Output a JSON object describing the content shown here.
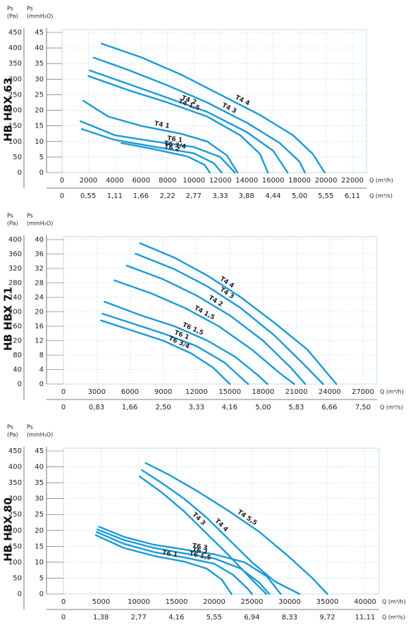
{
  "chart_data": [
    {
      "type": "line",
      "title": "HB HBX 63",
      "color": "#1b9ad6",
      "grid": true,
      "y_label": [
        "Ps",
        "(Pa)"
      ],
      "y2_label": [
        "Ps",
        "(mmH₂O)"
      ],
      "x_label": "Q (m³/h)",
      "x2_label": "Q (m³/s)",
      "ylim": [
        0,
        450
      ],
      "yticks": [
        0,
        50,
        100,
        150,
        200,
        250,
        300,
        350,
        400,
        450
      ],
      "y2lim": [
        0,
        45
      ],
      "y2ticks": [
        0,
        5,
        10,
        15,
        20,
        25,
        30,
        35,
        40,
        45
      ],
      "xlim": [
        0,
        22000
      ],
      "xticks": [
        0,
        2000,
        4000,
        6000,
        8000,
        10000,
        12000,
        14000,
        16000,
        18000,
        20000,
        22000
      ],
      "x2lim": [
        0,
        6.11
      ],
      "x2ticks": [
        0,
        {
          "value": 0.55,
          "label": "0,55"
        },
        {
          "value": 1.11,
          "label": "1,11"
        },
        {
          "value": 1.66,
          "label": "1,66"
        },
        {
          "value": 2.22,
          "label": "2,22"
        },
        {
          "value": 2.77,
          "label": "2,77"
        },
        {
          "value": 3.33,
          "label": "3,33"
        },
        {
          "value": 3.88,
          "label": "3,88"
        },
        {
          "value": 4.44,
          "label": "4,44"
        },
        {
          "value": 5.0,
          "label": "5,00"
        },
        {
          "value": 5.55,
          "label": "5,55"
        },
        {
          "value": 6.11,
          "label": "6,11"
        }
      ],
      "series": [
        {
          "name": "T4 4",
          "x": [
            3000,
            6000,
            9000,
            12000,
            15000,
            17500,
            19000,
            19900
          ],
          "values": [
            414,
            370,
            315,
            250,
            185,
            120,
            60,
            0
          ]
        },
        {
          "name": "T4 3",
          "x": [
            2400,
            5000,
            8000,
            11000,
            14000,
            16500,
            18000,
            18400
          ],
          "values": [
            369,
            330,
            280,
            225,
            160,
            95,
            35,
            0
          ]
        },
        {
          "name": "T4 2",
          "x": [
            2100,
            5000,
            8000,
            11000,
            14000,
            16000,
            17100
          ],
          "values": [
            328,
            285,
            240,
            195,
            130,
            70,
            0
          ]
        },
        {
          "name": "T4 1,5",
          "x": [
            2000,
            5000,
            8000,
            11000,
            13500,
            15000,
            15600
          ],
          "values": [
            310,
            265,
            225,
            180,
            120,
            60,
            0
          ]
        },
        {
          "name": "T4 1",
          "x": [
            1600,
            3500,
            6000,
            9000,
            11000,
            12500,
            13300
          ],
          "values": [
            231,
            180,
            150,
            125,
            100,
            55,
            0
          ]
        },
        {
          "name": "T6 1",
          "x": [
            1400,
            4000,
            7000,
            10000,
            12000,
            13100
          ],
          "values": [
            165,
            120,
            100,
            82,
            50,
            0
          ]
        },
        {
          "name": "T6 3/4",
          "x": [
            1500,
            4000,
            7000,
            10000,
            11500,
            12100
          ],
          "values": [
            140,
            105,
            83,
            62,
            30,
            0
          ]
        },
        {
          "name": "T6 2",
          "x": [
            4500,
            7000,
            9500,
            10800,
            11200
          ],
          "values": [
            95,
            75,
            52,
            25,
            0
          ]
        }
      ]
    },
    {
      "type": "line",
      "title": "HB HBX 71",
      "color": "#1b9ad6",
      "grid": true,
      "y_label": [
        "Ps",
        "(Pa)"
      ],
      "y2_label": [
        "Ps",
        "(mmH₂O)"
      ],
      "x_label": "Q (m³/h)",
      "x2_label": "Q (m³/s)",
      "ylim": [
        0,
        400
      ],
      "yticks": [
        0,
        40,
        80,
        120,
        160,
        200,
        240,
        280,
        320,
        360,
        400
      ],
      "y2lim": [
        0,
        40
      ],
      "y2ticks": [
        0,
        4,
        8,
        12,
        16,
        20,
        24,
        28,
        32,
        36,
        40
      ],
      "xlim": [
        0,
        27000
      ],
      "xticks": [
        0,
        3000,
        6000,
        9000,
        12000,
        15000,
        18000,
        21000,
        24000,
        27000
      ],
      "x2lim": [
        0,
        7.5
      ],
      "x2ticks": [
        0,
        {
          "value": 0.83,
          "label": "0,83"
        },
        {
          "value": 1.66,
          "label": "1,66"
        },
        {
          "value": 2.5,
          "label": "2,50"
        },
        {
          "value": 3.33,
          "label": "3,33"
        },
        {
          "value": 4.16,
          "label": "4,16"
        },
        {
          "value": 5.0,
          "label": "5,00"
        },
        {
          "value": 5.83,
          "label": "5,83"
        },
        {
          "value": 6.66,
          "label": "6,66"
        },
        {
          "value": 7.5,
          "label": "7,50"
        }
      ],
      "series": [
        {
          "name": "T4 4",
          "x": [
            6900,
            10000,
            13000,
            16000,
            19000,
            22000,
            24600
          ],
          "values": [
            390,
            350,
            300,
            240,
            170,
            95,
            0
          ]
        },
        {
          "name": "T4 3",
          "x": [
            6500,
            10000,
            13000,
            16000,
            19000,
            21500,
            23400
          ],
          "values": [
            361,
            318,
            270,
            210,
            135,
            60,
            0
          ]
        },
        {
          "name": "T4 2",
          "x": [
            5700,
            9000,
            12000,
            15000,
            18000,
            20500,
            21800
          ],
          "values": [
            328,
            290,
            245,
            190,
            120,
            45,
            0
          ]
        },
        {
          "name": "T4 1,5",
          "x": [
            4600,
            8000,
            11000,
            14000,
            17000,
            19500,
            20800
          ],
          "values": [
            287,
            250,
            210,
            160,
            95,
            30,
            0
          ]
        },
        {
          "name": "T6 1,5",
          "x": [
            3700,
            7000,
            10000,
            13000,
            15500,
            17500,
            18400
          ],
          "values": [
            228,
            190,
            160,
            120,
            75,
            25,
            0
          ]
        },
        {
          "name": "T6 1",
          "x": [
            3500,
            6000,
            9000,
            12000,
            14500,
            16100,
            16650
          ],
          "values": [
            195,
            170,
            140,
            105,
            60,
            15,
            0
          ]
        },
        {
          "name": "T6 3/4",
          "x": [
            3400,
            6000,
            9000,
            11500,
            13500,
            15000
          ],
          "values": [
            176,
            150,
            120,
            85,
            45,
            0
          ]
        }
      ]
    },
    {
      "type": "line",
      "title": "HB HBX 80",
      "color": "#1b9ad6",
      "grid": true,
      "y_label": [
        "Ps",
        "(Pa)"
      ],
      "y2_label": [
        "Ps",
        "(mmH₂O)"
      ],
      "x_label": "Q (m³/h)",
      "x2_label": "Q (m³/s)",
      "ylim": [
        0,
        450
      ],
      "yticks": [
        0,
        50,
        100,
        150,
        200,
        250,
        300,
        350,
        400,
        450
      ],
      "y2lim": [
        0,
        45
      ],
      "y2ticks": [
        0,
        5,
        10,
        15,
        20,
        25,
        30,
        35,
        40,
        45
      ],
      "xlim": [
        0,
        40000
      ],
      "xticks": [
        0,
        5000,
        10000,
        15000,
        20000,
        25000,
        30000,
        35000,
        40000
      ],
      "x2lim": [
        0,
        11.11
      ],
      "x2ticks": [
        0,
        {
          "value": 1.38,
          "label": "1,38"
        },
        {
          "value": 2.77,
          "label": "2,77"
        },
        {
          "value": 4.16,
          "label": "4,16"
        },
        {
          "value": 5.55,
          "label": "5,55"
        },
        {
          "value": 6.94,
          "label": "6,94"
        },
        {
          "value": 8.33,
          "label": "8,33"
        },
        {
          "value": 9.72,
          "label": "9,72"
        },
        {
          "value": 11.11,
          "label": "11,11"
        }
      ],
      "series": [
        {
          "name": "T4 5,5",
          "x": [
            10900,
            14000,
            18000,
            22000,
            26000,
            30000,
            33000,
            35000
          ],
          "values": [
            412,
            375,
            320,
            260,
            195,
            115,
            50,
            0
          ]
        },
        {
          "name": "T4 4",
          "x": [
            10400,
            13000,
            16000,
            19000,
            22000,
            25000,
            28000,
            31300
          ],
          "values": [
            390,
            350,
            300,
            240,
            170,
            100,
            40,
            0
          ]
        },
        {
          "name": "T4 3",
          "x": [
            10100,
            13000,
            16000,
            19000,
            22000,
            25000,
            26900
          ],
          "values": [
            370,
            320,
            260,
            190,
            120,
            45,
            0
          ]
        },
        {
          "name": "T6 3",
          "x": [
            4700,
            8000,
            12000,
            16000,
            20000,
            24000,
            27000,
            28800
          ],
          "values": [
            212,
            180,
            155,
            140,
            125,
            100,
            55,
            0
          ]
        },
        {
          "name": "T6 2",
          "x": [
            4500,
            8000,
            12000,
            16000,
            20000,
            23500,
            26000,
            27300
          ],
          "values": [
            203,
            170,
            145,
            128,
            112,
            80,
            35,
            0
          ]
        },
        {
          "name": "T6 1,5",
          "x": [
            4400,
            8000,
            12000,
            16000,
            20000,
            22500,
            24500,
            25000
          ],
          "values": [
            195,
            158,
            132,
            115,
            95,
            60,
            15,
            0
          ]
        },
        {
          "name": "T6 1",
          "x": [
            4300,
            8000,
            12000,
            16000,
            19000,
            21000,
            22300
          ],
          "values": [
            185,
            145,
            120,
            102,
            80,
            45,
            0
          ]
        }
      ]
    }
  ]
}
